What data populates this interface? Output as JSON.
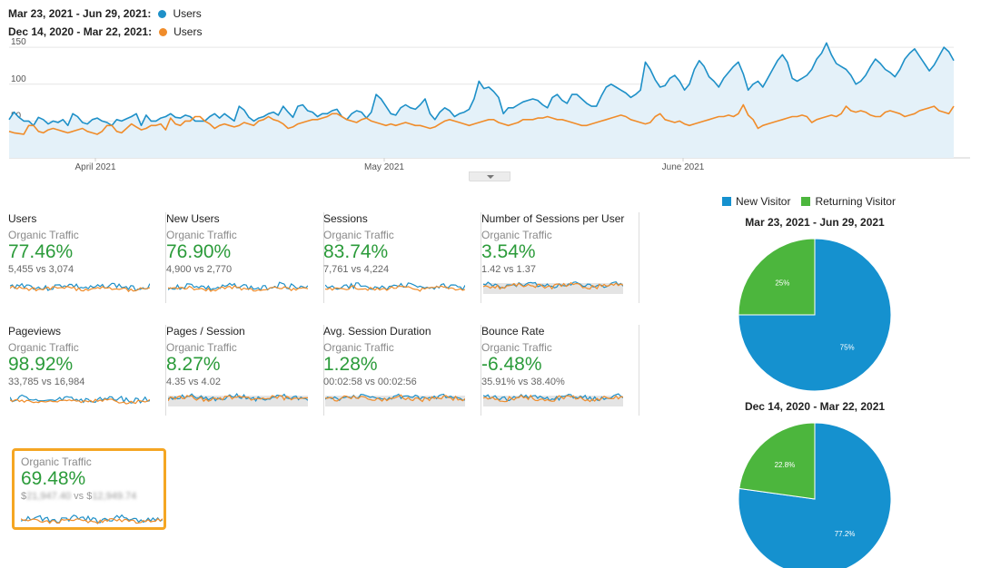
{
  "legend": {
    "current_range": "Mar 23, 2021 - Jun 29, 2021:",
    "previous_range": "Dec 14, 2020 - Mar 22, 2021:",
    "series_label": "Users"
  },
  "colors": {
    "current": "#1e90c8",
    "previous": "#f08c2a",
    "positive": "#2b9b3a",
    "new_visitor": "#1591cf",
    "returning_visitor": "#4cb63d",
    "highlight": "#f5a623"
  },
  "chart_data": {
    "type": "line",
    "x_tick_labels": [
      "April 2021",
      "May 2021",
      "June 2021"
    ],
    "y_ticks": [
      50,
      100,
      150
    ],
    "ylim": [
      0,
      160
    ],
    "grid": true,
    "series": [
      {
        "name": "Users",
        "period": "Mar 23, 2021 - Jun 29, 2021",
        "values": [
          52,
          62,
          55,
          50,
          50,
          44,
          55,
          52,
          46,
          50,
          48,
          52,
          44,
          60,
          56,
          48,
          46,
          52,
          54,
          50,
          48,
          44,
          52,
          50,
          53,
          56,
          60,
          44,
          58,
          50,
          50,
          54,
          56,
          60,
          55,
          54,
          58,
          56,
          50,
          50,
          50,
          56,
          60,
          54,
          60,
          55,
          50,
          70,
          65,
          55,
          50,
          54,
          56,
          60,
          62,
          58,
          70,
          62,
          55,
          70,
          72,
          64,
          62,
          56,
          60,
          60,
          64,
          66,
          56,
          52,
          60,
          64,
          62,
          54,
          62,
          86,
          80,
          70,
          60,
          58,
          68,
          72,
          68,
          66,
          72,
          80,
          60,
          52,
          62,
          68,
          64,
          56,
          60,
          62,
          66,
          80,
          104,
          94,
          96,
          90,
          82,
          60,
          68,
          68,
          72,
          76,
          78,
          80,
          78,
          72,
          68,
          82,
          86,
          78,
          74,
          86,
          86,
          80,
          74,
          70,
          70,
          84,
          96,
          100,
          96,
          92,
          88,
          82,
          86,
          92,
          130,
          120,
          106,
          96,
          98,
          108,
          112,
          104,
          92,
          100,
          120,
          132,
          124,
          110,
          104,
          96,
          108,
          116,
          124,
          130,
          114,
          92,
          100,
          104,
          96,
          108,
          120,
          132,
          140,
          130,
          108,
          104,
          108,
          112,
          120,
          134,
          142,
          156,
          140,
          128,
          124,
          120,
          112,
          100,
          104,
          112,
          124,
          134,
          128,
          120,
          116,
          110,
          120,
          134,
          142,
          148,
          138,
          128,
          118,
          126,
          138,
          150,
          144,
          132
        ],
        "values_note": ""
      },
      {
        "name": "Users",
        "period": "Dec 14, 2020 - Mar 22, 2021",
        "values": [
          36,
          34,
          33,
          32,
          44,
          44,
          36,
          34,
          38,
          40,
          38,
          36,
          34,
          36,
          38,
          40,
          36,
          34,
          32,
          36,
          44,
          44,
          36,
          34,
          40,
          46,
          42,
          38,
          40,
          44,
          44,
          46,
          38,
          54,
          46,
          44,
          50,
          50,
          56,
          56,
          50,
          46,
          40,
          44,
          46,
          44,
          42,
          44,
          48,
          46,
          44,
          50,
          52,
          56,
          52,
          50,
          46,
          40,
          42,
          46,
          48,
          50,
          52,
          52,
          54,
          56,
          60,
          60,
          56,
          52,
          50,
          48,
          52,
          54,
          50,
          48,
          46,
          44,
          46,
          44,
          46,
          48,
          46,
          44,
          44,
          42,
          40,
          42,
          46,
          50,
          52,
          50,
          48,
          46,
          44,
          46,
          48,
          50,
          52,
          52,
          48,
          46,
          44,
          46,
          48,
          52,
          52,
          52,
          54,
          54,
          56,
          54,
          52,
          52,
          50,
          48,
          46,
          44,
          44,
          46,
          48,
          50,
          52,
          54,
          56,
          58,
          56,
          52,
          50,
          48,
          46,
          48,
          56,
          60,
          52,
          50,
          48,
          50,
          46,
          44,
          46,
          48,
          50,
          52,
          54,
          56,
          56,
          58,
          56,
          60,
          72,
          58,
          52,
          40,
          44,
          46,
          48,
          50,
          52,
          54,
          56,
          56,
          58,
          56,
          48,
          52,
          54,
          56,
          58,
          56,
          60,
          70,
          64,
          62,
          64,
          62,
          58,
          56,
          56,
          62,
          64,
          62,
          60,
          56,
          58,
          60,
          64,
          66,
          68,
          70,
          64,
          62,
          60,
          70
        ]
      }
    ],
    "sampled_series": true
  },
  "metrics": [
    {
      "title": "Users",
      "segment": "Organic Traffic",
      "pct": "77.46%",
      "compare": "5,455 vs 3,074"
    },
    {
      "title": "New Users",
      "segment": "Organic Traffic",
      "pct": "76.90%",
      "compare": "4,900 vs 2,770"
    },
    {
      "title": "Sessions",
      "segment": "Organic Traffic",
      "pct": "83.74%",
      "compare": "7,761 vs 4,224"
    },
    {
      "title": "Number of Sessions per User",
      "segment": "Organic Traffic",
      "pct": "3.54%",
      "compare": "1.42 vs 1.37"
    },
    {
      "title": "Pageviews",
      "segment": "Organic Traffic",
      "pct": "98.92%",
      "compare": "33,785 vs 16,984"
    },
    {
      "title": "Pages / Session",
      "segment": "Organic Traffic",
      "pct": "8.27%",
      "compare": "4.35 vs 4.02"
    },
    {
      "title": "Avg. Session Duration",
      "segment": "Organic Traffic",
      "pct": "1.28%",
      "compare": "00:02:58 vs 00:02:56"
    },
    {
      "title": "Bounce Rate",
      "segment": "Organic Traffic",
      "pct": "-6.48%",
      "compare": "35.91% vs 38.40%"
    }
  ],
  "highlight": {
    "segment": "Organic Traffic",
    "pct": "69.48%",
    "compare_prefix": "$",
    "compare_blurred_a": "21,947.40",
    "compare_vs": " vs ",
    "compare_prefix_b": "$",
    "compare_blurred_b": "12,949.74"
  },
  "pie": {
    "legend": [
      "New Visitor",
      "Returning Visitor"
    ],
    "charts": [
      {
        "title": "Mar 23, 2021 - Jun 29, 2021",
        "new_pct": 75,
        "returning_pct": 25,
        "new_label": "75%",
        "returning_label": "25%"
      },
      {
        "title": "Dec 14, 2020 - Mar 22, 2021",
        "new_pct": 77.2,
        "returning_pct": 22.8,
        "new_label": "77.2%",
        "returning_label": "22.8%"
      }
    ]
  }
}
